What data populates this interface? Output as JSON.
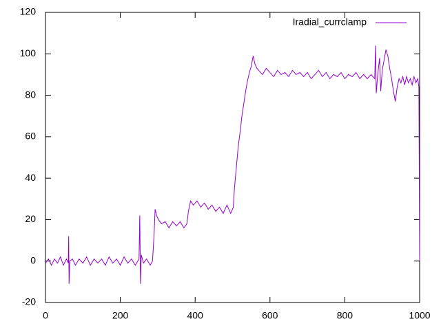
{
  "chart_data": {
    "type": "line",
    "x": [
      0,
      8,
      16,
      24,
      32,
      40,
      48,
      56,
      61,
      62,
      63,
      65,
      72,
      80,
      90,
      100,
      110,
      120,
      130,
      140,
      150,
      160,
      170,
      180,
      190,
      200,
      210,
      220,
      230,
      240,
      250,
      252,
      254,
      256,
      262,
      270,
      280,
      286,
      290,
      293,
      297,
      302,
      310,
      320,
      330,
      340,
      350,
      360,
      370,
      378,
      382,
      388,
      395,
      405,
      415,
      425,
      435,
      445,
      455,
      465,
      475,
      485,
      495,
      502,
      505,
      510,
      515,
      520,
      525,
      530,
      535,
      540,
      545,
      550,
      555,
      560,
      565,
      570,
      580,
      590,
      600,
      610,
      620,
      630,
      640,
      650,
      660,
      670,
      680,
      690,
      700,
      710,
      720,
      730,
      740,
      750,
      760,
      770,
      780,
      790,
      800,
      810,
      820,
      830,
      840,
      850,
      860,
      870,
      880,
      882,
      884,
      888,
      893,
      896,
      900,
      905,
      910,
      915,
      920,
      925,
      930,
      935,
      940,
      945,
      950,
      955,
      960,
      965,
      970,
      975,
      980,
      985,
      990,
      995,
      998,
      1000
    ],
    "series": [
      {
        "name": "Iradial_currclamp",
        "color": "#9400d3",
        "values": [
          -1,
          1,
          -2,
          1,
          -1,
          2,
          -2,
          1,
          -1,
          12,
          -11,
          0,
          1,
          -2,
          1,
          -1,
          2,
          -2,
          1,
          -1,
          1,
          -2,
          2,
          -1,
          1,
          -2,
          2,
          -1,
          1,
          -2,
          1,
          22,
          -11,
          3,
          -1,
          1,
          -2,
          0,
          12,
          25,
          22,
          20,
          18,
          19,
          16,
          19,
          17,
          19,
          16,
          18,
          24,
          29,
          27,
          29,
          26,
          28,
          25,
          27,
          24,
          26,
          23,
          27,
          23,
          26,
          35,
          45,
          55,
          62,
          70,
          76,
          82,
          87,
          91,
          94,
          99,
          95,
          93,
          92,
          90,
          93,
          91,
          89,
          92,
          90,
          91,
          89,
          92,
          90,
          91,
          89,
          91,
          88,
          90,
          92,
          89,
          91,
          88,
          90,
          89,
          91,
          88,
          90,
          89,
          91,
          88,
          90,
          88,
          90,
          88,
          104,
          81,
          90,
          98,
          82,
          92,
          97,
          102,
          99,
          93,
          88,
          82,
          77,
          84,
          88,
          86,
          89,
          85,
          89,
          86,
          88,
          85,
          89,
          86,
          88,
          84,
          0
        ]
      }
    ],
    "xlim": [
      0,
      1000
    ],
    "ylim": [
      -20,
      120
    ],
    "xticks": [
      0,
      200,
      400,
      600,
      800,
      1000
    ],
    "yticks": [
      -20,
      0,
      20,
      40,
      60,
      80,
      100,
      120
    ],
    "legend": "top-right"
  }
}
